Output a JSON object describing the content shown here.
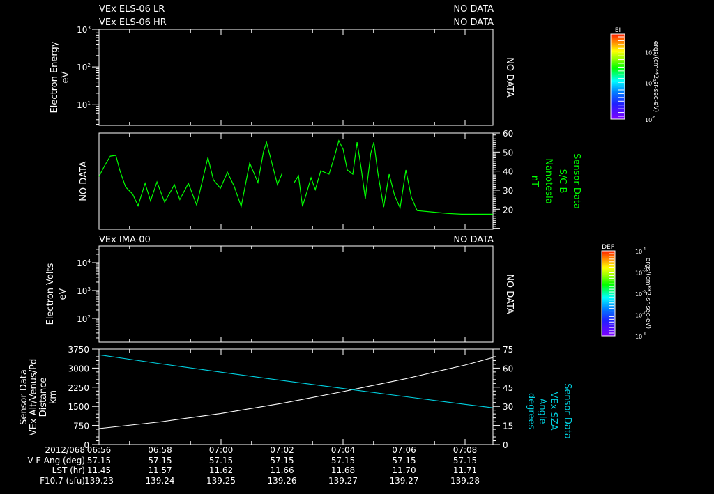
{
  "chart_data": [
    {
      "type": "heatmap",
      "panel": "electron-energy",
      "titles_left": [
        "VEx ELS-06 LR",
        "VEx ELS-06 HR"
      ],
      "titles_right": [
        "NO DATA",
        "NO DATA"
      ],
      "ylabel": [
        "Electron Energy",
        "eV"
      ],
      "yscale": "log",
      "yticks": [
        "10^1",
        "10^2",
        "10^3"
      ],
      "right_label": "NO DATA",
      "colorbar": {
        "label": "EI",
        "units": "ergs/(cm**2-sr-sec-eV)",
        "ticks": [
          "10^-4",
          "10^-6",
          "10^-8"
        ]
      }
    },
    {
      "type": "line",
      "panel": "magnetic-field",
      "left_label": "NO DATA",
      "ylabel": [
        "Sensor Data",
        "S/C B",
        "Nanotesla",
        "nT"
      ],
      "ylim": [
        9.5,
        60
      ],
      "yticks": [
        20,
        30,
        40,
        50,
        60
      ],
      "color": "#00ff00",
      "segments": [
        {
          "t": [
            0,
            0.18,
            0.37,
            0.55,
            0.69,
            0.87,
            1.1,
            1.28,
            1.51,
            1.69,
            1.9,
            2.15,
            2.47,
            2.65,
            2.93,
            3.2,
            3.57,
            3.75,
            3.98,
            4.21,
            4.43,
            4.66,
            4.94,
            5.21,
            5.39,
            5.49,
            5.62,
            5.85,
            6.01
          ],
          "v": [
            37.2,
            42.8,
            47.9,
            48.3,
            40,
            31.7,
            28,
            21.8,
            33.6,
            24.4,
            34.3,
            23.7,
            32.9,
            25.1,
            33.6,
            22.2,
            47.2,
            35.4,
            31,
            39.4,
            32.1,
            21.5,
            44.3,
            34,
            50.1,
            55.2,
            47.2,
            32.9,
            39.1
          ]
        },
        {
          "t": [
            6.4,
            6.54,
            6.67,
            6.81,
            6.95,
            7.09,
            7.27,
            7.54,
            7.73,
            7.86,
            8,
            8.14,
            8.32,
            8.46,
            8.59,
            8.73,
            8.91,
            9.01,
            9.14,
            9.33,
            9.51,
            9.69,
            9.87,
            10.06,
            10.24,
            10.43,
            11.43,
            11.89,
            12.91
          ],
          "v": [
            34,
            37.6,
            21.5,
            28.8,
            36.5,
            30.3,
            40.2,
            38.4,
            48.3,
            56,
            51.6,
            40.6,
            38.4,
            55.2,
            42,
            25.5,
            49.4,
            55.2,
            39.1,
            21.1,
            38.4,
            27.3,
            20.7,
            40.6,
            26.2,
            19.3,
            17.8,
            17.4,
            17.4
          ]
        }
      ]
    },
    {
      "type": "heatmap",
      "panel": "ion-energy",
      "title_left": "VEx IMA-00",
      "title_right": "NO DATA",
      "ylabel": [
        "Electron Volts",
        "eV"
      ],
      "yscale": "log",
      "yticks": [
        "10^2",
        "10^3",
        "10^4"
      ],
      "right_label": "NO DATA",
      "colorbar": {
        "label": "DEF",
        "units": "ergs/(cm**2-sr-sec-eV)",
        "ticks": [
          "10^-4",
          "10^-5",
          "10^-6",
          "10^-7",
          "10^-8"
        ]
      }
    },
    {
      "type": "line",
      "panel": "altitude-sza",
      "ylabel_left": [
        "Sensor Data",
        "VEx Alt/Venus/Pd",
        "Distance",
        "km"
      ],
      "ylabel_right": [
        "Sensor Data",
        "VEx SZA",
        "Angle",
        "degrees"
      ],
      "ylim_left": [
        0,
        3750
      ],
      "yticks_left": [
        0,
        750,
        1500,
        2250,
        3000,
        3750
      ],
      "ylim_right": [
        0,
        75
      ],
      "yticks_right": [
        0,
        15,
        30,
        45,
        60,
        75
      ],
      "series": [
        {
          "name": "Altitude (km)",
          "color": "#ffffff",
          "axis": "left",
          "t": [
            0,
            2,
            4,
            6,
            8,
            10,
            12,
            12.91
          ],
          "v": [
            630,
            890,
            1220,
            1620,
            2080,
            2570,
            3120,
            3420
          ]
        },
        {
          "name": "SZA (deg)",
          "color": "#00d0e0",
          "axis": "right",
          "t": [
            0,
            2,
            4,
            6,
            8,
            10,
            12,
            12.91
          ],
          "v": [
            70.5,
            63.5,
            56.8,
            50.3,
            44,
            37.8,
            31.6,
            28.9
          ]
        }
      ]
    }
  ],
  "time_axis": {
    "date": "2012/068",
    "ticks": [
      "06:56",
      "06:58",
      "07:00",
      "07:02",
      "07:04",
      "07:06",
      "07:08"
    ],
    "rows": [
      {
        "label": "V-E Ang (deg)",
        "values": [
          "57.15",
          "57.15",
          "57.15",
          "57.15",
          "57.15",
          "57.15",
          "57.15"
        ]
      },
      {
        "label": "LST (hr)",
        "values": [
          "11.45",
          "11.57",
          "11.62",
          "11.66",
          "11.68",
          "11.70",
          "11.71"
        ]
      },
      {
        "label": "F10.7 (sfu)",
        "values": [
          "139.23",
          "139.24",
          "139.25",
          "139.26",
          "139.27",
          "139.27",
          "139.28"
        ]
      }
    ]
  },
  "labels": {
    "p1_title1": "VEx ELS-06 LR",
    "p1_title2": "VEx ELS-06 HR",
    "p1_nodata1": "NO DATA",
    "p1_nodata2": "NO DATA",
    "p1_ylabel1": "Electron Energy",
    "p1_ylabel2": "eV",
    "p1_right": "NO DATA",
    "p2_left": "NO DATA",
    "p2_ylabel": [
      "Sensor Data",
      "S/C B",
      "Nanotesla",
      "nT"
    ],
    "p3_title": "VEx IMA-00",
    "p3_nodata": "NO DATA",
    "p3_ylabel1": "Electron Volts",
    "p3_ylabel2": "eV",
    "p3_right": "NO DATA",
    "p4_ylabel_left": [
      "Sensor Data",
      "VEx Alt/Venus/Pd",
      "Distance",
      "km"
    ],
    "p4_ylabel_right": [
      "Sensor Data",
      "VEx SZA",
      "Angle",
      "degrees"
    ],
    "cb1_label": "EI",
    "cb2_label": "DEF",
    "cb_units": "ergs/(cm**2-sr-sec-eV)"
  }
}
